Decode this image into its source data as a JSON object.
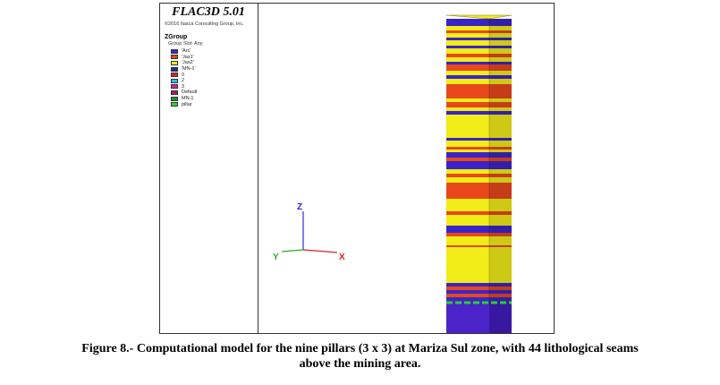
{
  "figure": {
    "app_title": "FLAC3D 5.01",
    "copyright": "©2016 Itasca Consulting Group, Inc.",
    "legend": {
      "title": "ZGroup",
      "subtitle": "Group Slot: Any",
      "items": [
        {
          "label": "'Arc'",
          "color": "#3a24c8"
        },
        {
          "label": "'Jas1'",
          "color": "#e8481c"
        },
        {
          "label": "'Jas2'",
          "color": "#f2ec18"
        },
        {
          "label": "'MN-1'",
          "color": "#1a2aa8"
        },
        {
          "label": "0",
          "color": "#e8201c"
        },
        {
          "label": "2",
          "color": "#1ec8e8"
        },
        {
          "label": "3",
          "color": "#e02098"
        },
        {
          "label": "Default",
          "color": "#a82060"
        },
        {
          "label": "MN-1",
          "color": "#2a8a2a"
        },
        {
          "label": "pillar",
          "color": "#3ad02a"
        }
      ]
    },
    "axes": {
      "z_label": "Z",
      "y_label": "Y",
      "x_label": "X"
    }
  },
  "caption": {
    "line1": "Figure 8.- Computational model for the nine pillars (3 x 3) at Mariza Sul zone, with 44 lithological seams",
    "line2": "above the mining area."
  }
}
